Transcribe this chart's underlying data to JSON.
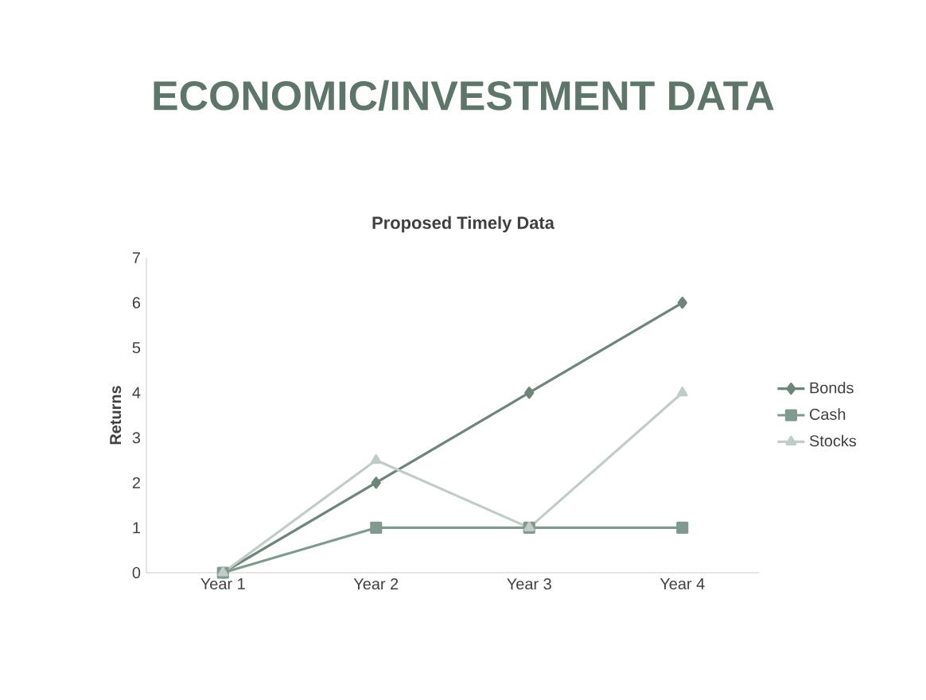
{
  "chart_data": {
    "type": "line",
    "title": "ECONOMIC/INVESTMENT DATA",
    "subtitle": "Proposed Timely Data",
    "ylabel": "Returns",
    "categories": [
      "Year 1",
      "Year 2",
      "Year 3",
      "Year 4"
    ],
    "series": [
      {
        "name": "Bonds",
        "color": "#6e8579",
        "marker": "diamond",
        "values": [
          0,
          2,
          4,
          6
        ]
      },
      {
        "name": "Cash",
        "color": "#819a8e",
        "marker": "square",
        "values": [
          0,
          1,
          1,
          1
        ]
      },
      {
        "name": "Stocks",
        "color": "#c2ccc6",
        "marker": "triangle",
        "values": [
          0,
          2.5,
          1,
          4
        ]
      }
    ],
    "ylim": [
      0,
      7
    ],
    "yticks": [
      0,
      1,
      2,
      3,
      4,
      5,
      6,
      7
    ],
    "grid": false,
    "legend": "right",
    "line_style": "solid"
  }
}
